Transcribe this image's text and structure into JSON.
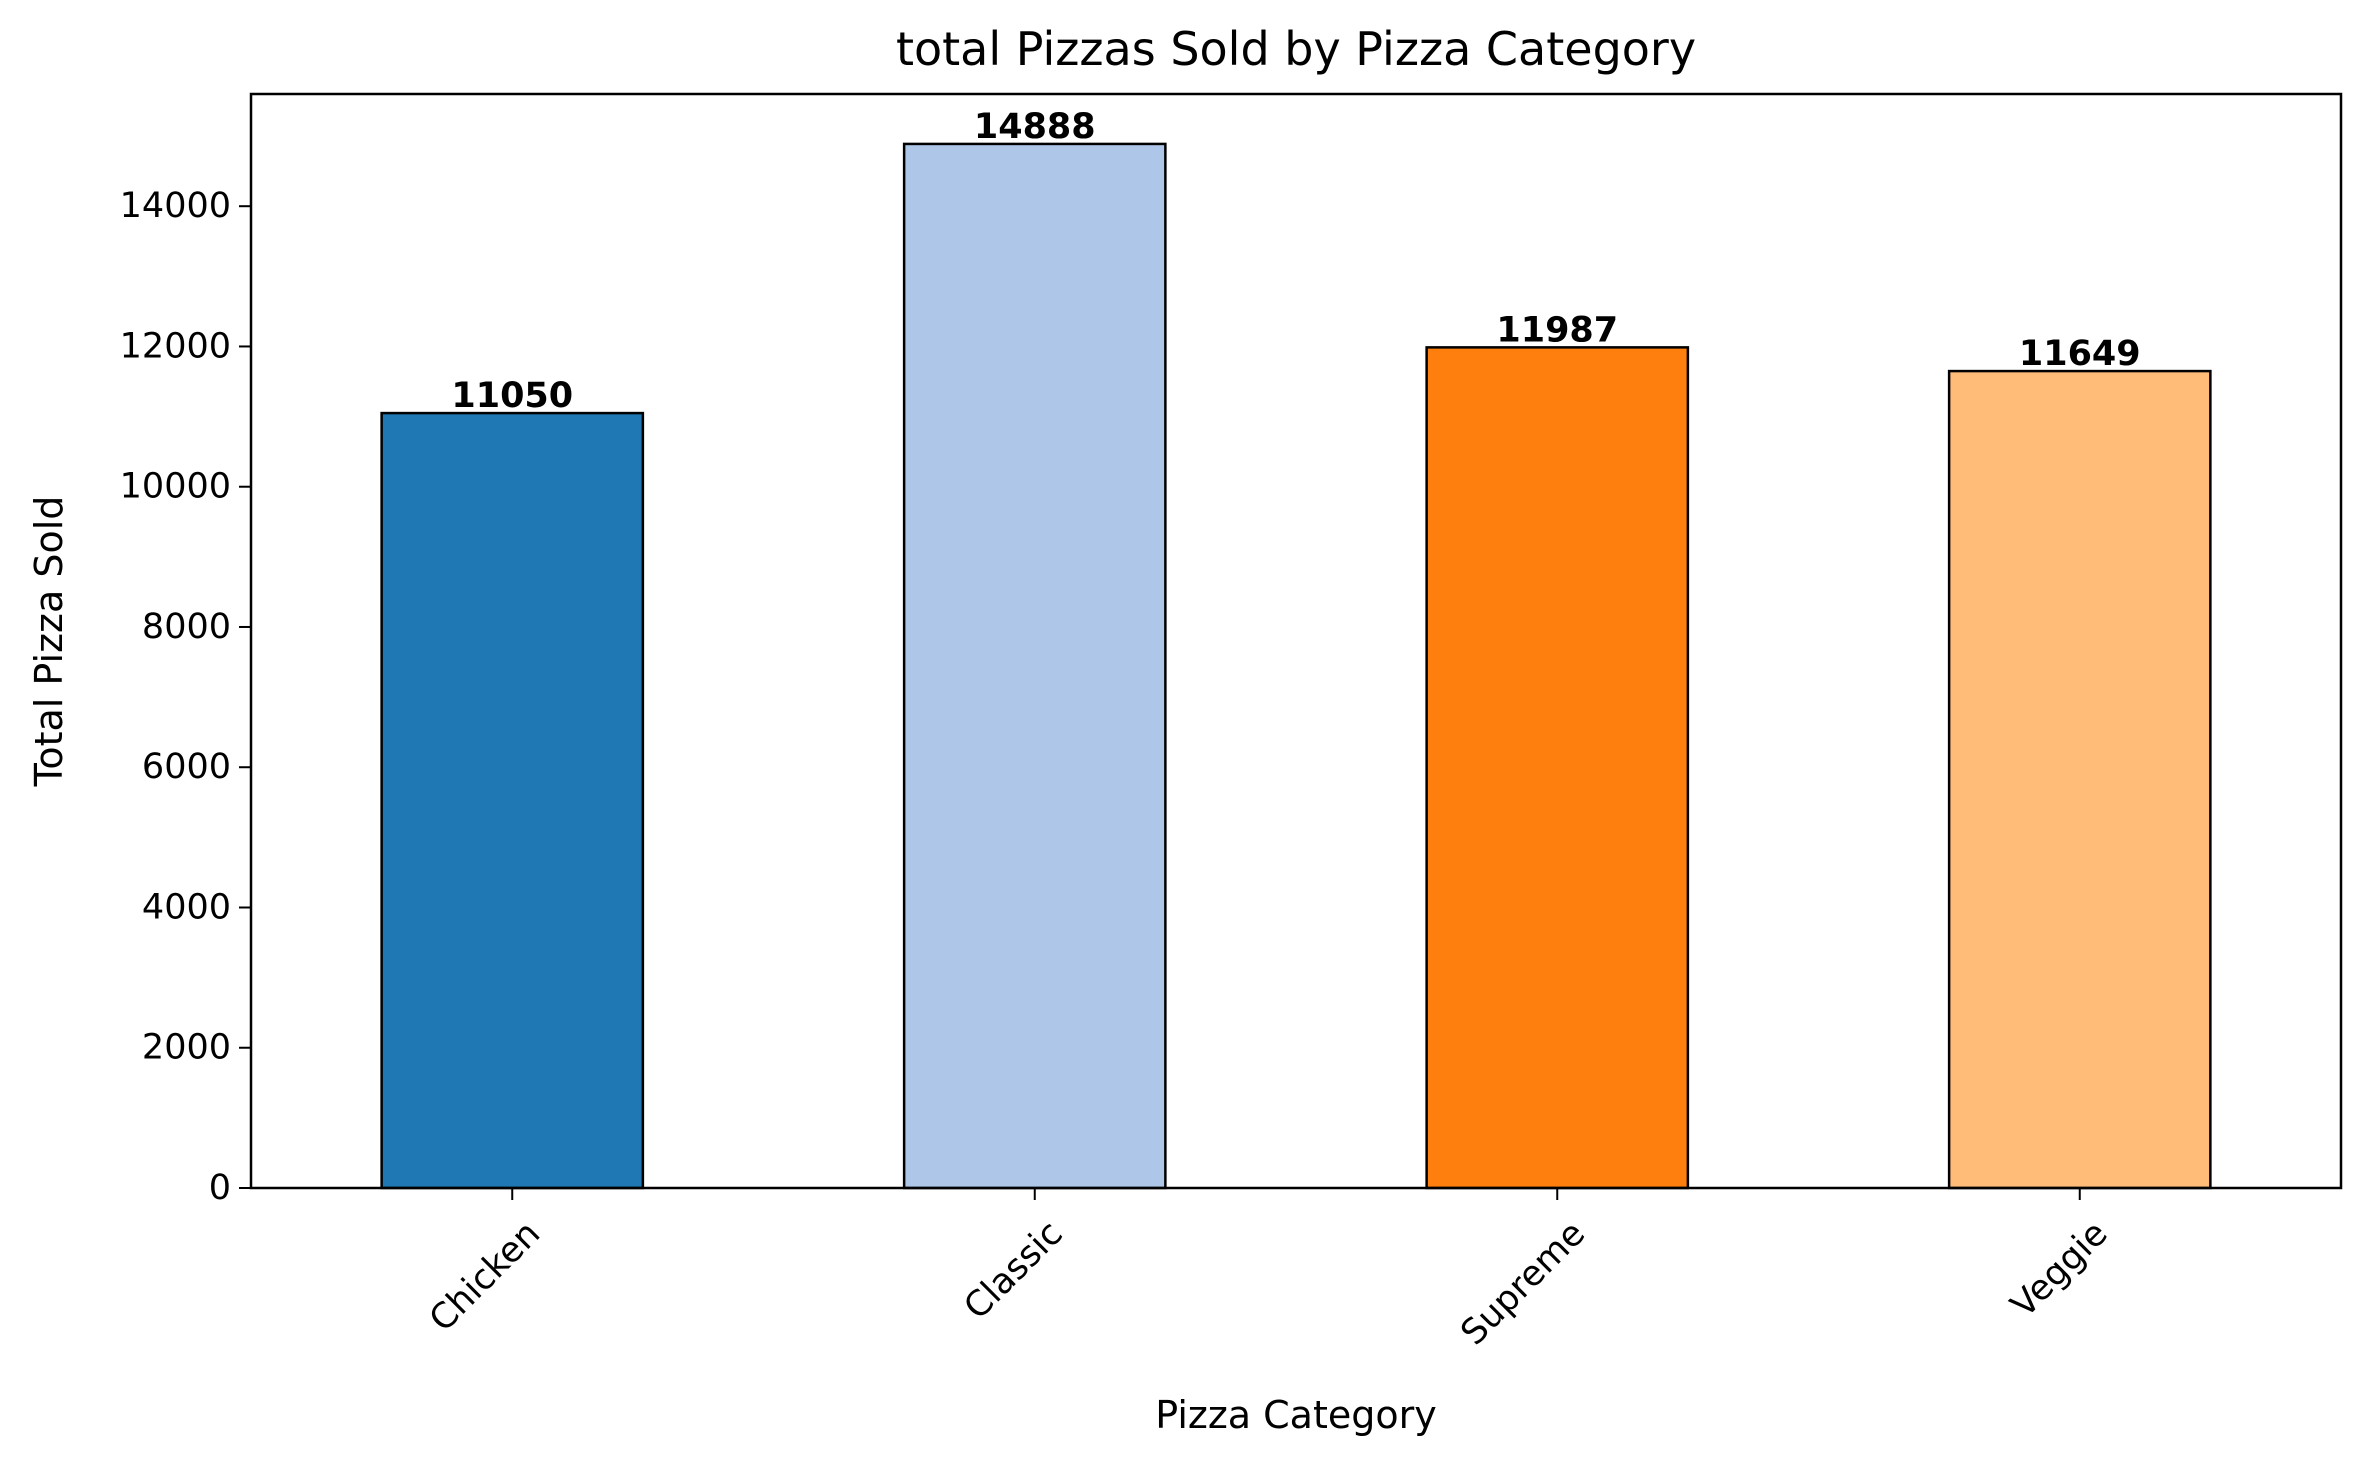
{
  "chart_data": {
    "type": "bar",
    "title": "total Pizzas Sold by Pizza Category",
    "xlabel": "Pizza Category",
    "ylabel": "Total Pizza Sold",
    "categories": [
      "Chicken",
      "Classic",
      "Supreme",
      "Veggie"
    ],
    "values": [
      11050,
      14888,
      11987,
      11649
    ],
    "data_labels": [
      "11050",
      "14888",
      "11987",
      "11649"
    ],
    "colors": [
      "#1f77b4",
      "#aec7e8",
      "#ff7f0e",
      "#ffbb78"
    ],
    "edge_color": "#000000",
    "ylim": [
      0,
      15600
    ],
    "yticks": [
      0,
      2000,
      4000,
      6000,
      8000,
      10000,
      12000,
      14000
    ],
    "ytick_labels": [
      "0",
      "2000",
      "4000",
      "6000",
      "8000",
      "10000",
      "12000",
      "14000"
    ],
    "xtick_rotation": 45,
    "grid": false,
    "legend": false
  }
}
